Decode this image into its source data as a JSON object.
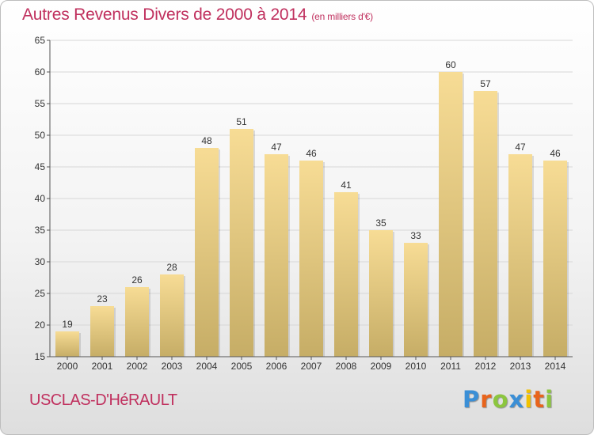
{
  "title": "Autres Revenus Divers de 2000 à 2014",
  "title_unit": "(en milliers d'€)",
  "footer_label": "USCLAS-D'HéRAULT",
  "logo": {
    "text": "Proxiti",
    "letters": [
      {
        "ch": "P",
        "color": "#3b8fd6"
      },
      {
        "ch": "r",
        "color": "#e8641c"
      },
      {
        "ch": "o",
        "color": "#8cc63f"
      },
      {
        "ch": "x",
        "color": "#3b8fd6"
      },
      {
        "ch": "i",
        "color": "#f2c200"
      },
      {
        "ch": "t",
        "color": "#e8641c"
      },
      {
        "ch": "i",
        "color": "#8cc63f"
      }
    ]
  },
  "colors": {
    "title": "#c0305e",
    "bar_light": "#f7dc95",
    "bar_dark": "#c6ad66",
    "grid": "#d7d7d7",
    "axis_text": "#333333"
  },
  "chart_data": {
    "type": "bar",
    "title": "Autres Revenus Divers de 2000 à 2014",
    "subtitle": "(en milliers d'€)",
    "xlabel": "",
    "ylabel": "",
    "categories": [
      "2000",
      "2001",
      "2002",
      "2003",
      "2004",
      "2005",
      "2006",
      "2007",
      "2008",
      "2009",
      "2010",
      "2011",
      "2012",
      "2013",
      "2014"
    ],
    "values": [
      19,
      23,
      26,
      28,
      48,
      51,
      47,
      46,
      41,
      35,
      33,
      60,
      57,
      47,
      46
    ],
    "ylim": [
      15,
      65
    ],
    "yticks": [
      15,
      20,
      25,
      30,
      35,
      40,
      45,
      50,
      55,
      60,
      65
    ],
    "grid": true,
    "legend": "none",
    "data_labels": true
  }
}
